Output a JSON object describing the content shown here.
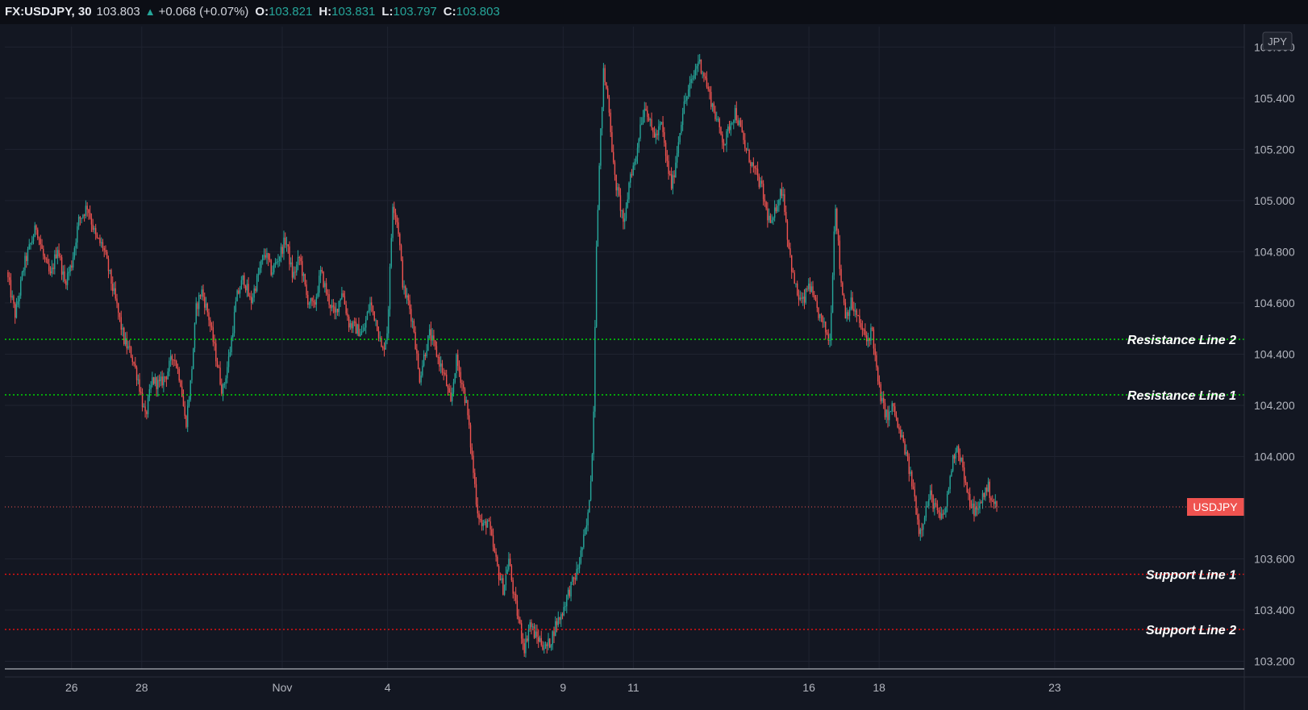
{
  "header": {
    "symbol": "FX:USDJPY, 30",
    "last": "103.803",
    "change": "+0.068 (+0.07%)",
    "open_label": "O:",
    "open": "103.821",
    "high_label": "H:",
    "high": "103.831",
    "low_label": "L:",
    "low": "103.797",
    "close_label": "C:",
    "close": "103.803"
  },
  "chart_data": {
    "type": "candlestick",
    "currency_unit": "JPY",
    "ylim": [
      103.17,
      105.68
    ],
    "yticks": [
      103.2,
      103.4,
      103.6,
      104.0,
      104.2,
      104.4,
      104.6,
      104.8,
      105.0,
      105.2,
      105.4,
      105.6
    ],
    "xlim_days": [
      -6.9,
      28.4
    ],
    "xticks": [
      {
        "day": -5,
        "label": "26"
      },
      {
        "day": -3,
        "label": "28"
      },
      {
        "day": 1,
        "label": "Nov"
      },
      {
        "day": 4,
        "label": "4"
      },
      {
        "day": 9,
        "label": "9"
      },
      {
        "day": 11,
        "label": "11"
      },
      {
        "day": 16,
        "label": "16"
      },
      {
        "day": 18,
        "label": "18"
      },
      {
        "day": 23,
        "label": "23"
      }
    ],
    "path": [
      [
        -6.85,
        104.72
      ],
      [
        -6.6,
        104.55
      ],
      [
        -6.35,
        104.75
      ],
      [
        -6.0,
        104.9
      ],
      [
        -5.8,
        104.78
      ],
      [
        -5.6,
        104.7
      ],
      [
        -5.4,
        104.82
      ],
      [
        -5.2,
        104.68
      ],
      [
        -5.0,
        104.75
      ],
      [
        -4.8,
        104.92
      ],
      [
        -4.55,
        104.98
      ],
      [
        -4.3,
        104.85
      ],
      [
        -4.1,
        104.82
      ],
      [
        -3.9,
        104.7
      ],
      [
        -3.7,
        104.58
      ],
      [
        -3.5,
        104.45
      ],
      [
        -3.3,
        104.4
      ],
      [
        -3.1,
        104.3
      ],
      [
        -2.9,
        104.15
      ],
      [
        -2.7,
        104.3
      ],
      [
        -2.5,
        104.28
      ],
      [
        -2.3,
        104.32
      ],
      [
        -2.1,
        104.4
      ],
      [
        -1.9,
        104.3
      ],
      [
        -1.75,
        104.12
      ],
      [
        -1.6,
        104.3
      ],
      [
        -1.45,
        104.58
      ],
      [
        -1.3,
        104.65
      ],
      [
        -1.1,
        104.55
      ],
      [
        -0.9,
        104.4
      ],
      [
        -0.7,
        104.25
      ],
      [
        -0.5,
        104.4
      ],
      [
        -0.3,
        104.62
      ],
      [
        -0.1,
        104.7
      ],
      [
        0.1,
        104.6
      ],
      [
        0.3,
        104.7
      ],
      [
        0.5,
        104.8
      ],
      [
        0.7,
        104.72
      ],
      [
        0.9,
        104.78
      ],
      [
        1.1,
        104.85
      ],
      [
        1.3,
        104.7
      ],
      [
        1.5,
        104.78
      ],
      [
        1.7,
        104.62
      ],
      [
        1.9,
        104.58
      ],
      [
        2.1,
        104.72
      ],
      [
        2.3,
        104.62
      ],
      [
        2.5,
        104.55
      ],
      [
        2.7,
        104.65
      ],
      [
        2.9,
        104.52
      ],
      [
        3.1,
        104.5
      ],
      [
        3.3,
        104.48
      ],
      [
        3.5,
        104.6
      ],
      [
        3.7,
        104.52
      ],
      [
        3.85,
        104.4
      ],
      [
        4.0,
        104.5
      ],
      [
        4.15,
        105.0
      ],
      [
        4.3,
        104.9
      ],
      [
        4.45,
        104.65
      ],
      [
        4.6,
        104.6
      ],
      [
        4.75,
        104.5
      ],
      [
        4.9,
        104.3
      ],
      [
        5.05,
        104.4
      ],
      [
        5.2,
        104.48
      ],
      [
        5.35,
        104.42
      ],
      [
        5.5,
        104.36
      ],
      [
        5.65,
        104.3
      ],
      [
        5.8,
        104.2
      ],
      [
        5.95,
        104.38
      ],
      [
        6.1,
        104.3
      ],
      [
        6.25,
        104.2
      ],
      [
        6.4,
        104.0
      ],
      [
        6.55,
        103.8
      ],
      [
        6.7,
        103.72
      ],
      [
        6.85,
        103.75
      ],
      [
        7.0,
        103.65
      ],
      [
        7.15,
        103.55
      ],
      [
        7.3,
        103.48
      ],
      [
        7.45,
        103.6
      ],
      [
        7.6,
        103.45
      ],
      [
        7.75,
        103.35
      ],
      [
        7.9,
        103.25
      ],
      [
        8.05,
        103.35
      ],
      [
        8.2,
        103.3
      ],
      [
        8.35,
        103.28
      ],
      [
        8.5,
        103.25
      ],
      [
        8.65,
        103.28
      ],
      [
        8.8,
        103.35
      ],
      [
        8.95,
        103.38
      ],
      [
        9.1,
        103.45
      ],
      [
        9.25,
        103.5
      ],
      [
        9.4,
        103.55
      ],
      [
        9.55,
        103.65
      ],
      [
        9.7,
        103.75
      ],
      [
        9.85,
        104.05
      ],
      [
        9.95,
        104.85
      ],
      [
        10.05,
        105.2
      ],
      [
        10.15,
        105.5
      ],
      [
        10.3,
        105.38
      ],
      [
        10.45,
        105.1
      ],
      [
        10.6,
        105.0
      ],
      [
        10.75,
        104.9
      ],
      [
        10.9,
        105.1
      ],
      [
        11.05,
        105.15
      ],
      [
        11.2,
        105.3
      ],
      [
        11.35,
        105.38
      ],
      [
        11.5,
        105.28
      ],
      [
        11.65,
        105.25
      ],
      [
        11.8,
        105.3
      ],
      [
        11.95,
        105.15
      ],
      [
        12.1,
        105.05
      ],
      [
        12.25,
        105.2
      ],
      [
        12.4,
        105.35
      ],
      [
        12.55,
        105.42
      ],
      [
        12.7,
        105.48
      ],
      [
        12.85,
        105.55
      ],
      [
        13.0,
        105.5
      ],
      [
        13.15,
        105.42
      ],
      [
        13.3,
        105.35
      ],
      [
        13.45,
        105.28
      ],
      [
        13.6,
        105.22
      ],
      [
        13.75,
        105.3
      ],
      [
        13.9,
        105.35
      ],
      [
        14.05,
        105.28
      ],
      [
        14.2,
        105.2
      ],
      [
        14.35,
        105.15
      ],
      [
        14.5,
        105.1
      ],
      [
        14.65,
        105.05
      ],
      [
        14.8,
        104.95
      ],
      [
        14.95,
        104.9
      ],
      [
        15.1,
        105.0
      ],
      [
        15.25,
        105.05
      ],
      [
        15.4,
        104.85
      ],
      [
        15.55,
        104.7
      ],
      [
        15.7,
        104.62
      ],
      [
        15.85,
        104.6
      ],
      [
        16.0,
        104.68
      ],
      [
        16.15,
        104.6
      ],
      [
        16.3,
        104.55
      ],
      [
        16.45,
        104.5
      ],
      [
        16.6,
        104.45
      ],
      [
        16.75,
        105.0
      ],
      [
        16.9,
        104.7
      ],
      [
        17.05,
        104.55
      ],
      [
        17.2,
        104.6
      ],
      [
        17.35,
        104.55
      ],
      [
        17.5,
        104.5
      ],
      [
        17.65,
        104.45
      ],
      [
        17.8,
        104.5
      ],
      [
        17.95,
        104.3
      ],
      [
        18.1,
        104.2
      ],
      [
        18.25,
        104.15
      ],
      [
        18.4,
        104.2
      ],
      [
        18.55,
        104.1
      ],
      [
        18.7,
        104.05
      ],
      [
        18.85,
        103.95
      ],
      [
        19.0,
        103.85
      ],
      [
        19.15,
        103.7
      ],
      [
        19.3,
        103.78
      ],
      [
        19.45,
        103.85
      ],
      [
        19.6,
        103.8
      ],
      [
        19.75,
        103.75
      ],
      [
        19.9,
        103.8
      ],
      [
        20.05,
        103.95
      ],
      [
        20.2,
        104.05
      ],
      [
        20.35,
        103.98
      ],
      [
        20.5,
        103.85
      ],
      [
        20.65,
        103.8
      ],
      [
        20.8,
        103.78
      ],
      [
        20.95,
        103.85
      ],
      [
        21.1,
        103.88
      ],
      [
        21.25,
        103.82
      ],
      [
        21.35,
        103.803
      ]
    ],
    "levels": [
      {
        "name": "Resistance Line 2",
        "price": 104.458,
        "label": "104.458",
        "kind": "resistance"
      },
      {
        "name": "Resistance Line 1",
        "price": 104.241,
        "label": "104.241",
        "kind": "resistance"
      },
      {
        "name": "Support Line 1",
        "price": 103.54,
        "label": "103.540",
        "kind": "support"
      },
      {
        "name": "Support Line 2",
        "price": 103.324,
        "label": "103.324",
        "kind": "support"
      }
    ],
    "last_price": {
      "symbol": "USDJPY",
      "price": 103.803,
      "label": "103.803"
    },
    "colors": {
      "background": "#131722",
      "up": "#26a69a",
      "down": "#ef5350",
      "resistance": "#00e600",
      "support": "#f01010",
      "last_badge": "#ef5350",
      "grid": "#1f2330"
    }
  }
}
